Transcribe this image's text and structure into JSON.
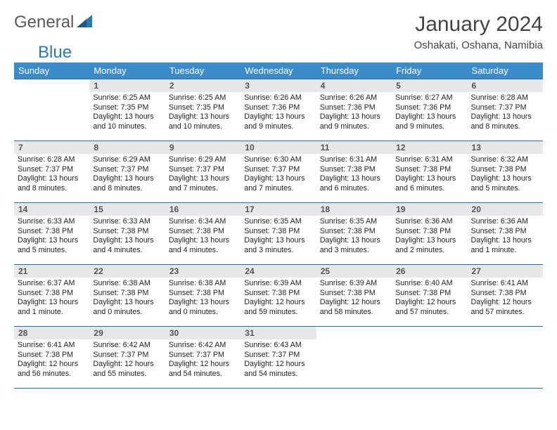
{
  "logo": {
    "general": "General",
    "blue": "Blue"
  },
  "title": "January 2024",
  "location": "Oshakati, Oshana, Namibia",
  "colors": {
    "header_bg": "#3b8bc9",
    "header_text": "#ffffff",
    "border": "#2a6a9e",
    "daynum_bg": "#e8e8e8",
    "logo_blue": "#2a7ab0",
    "logo_gray": "#5a5a5a"
  },
  "weekdays": [
    "Sunday",
    "Monday",
    "Tuesday",
    "Wednesday",
    "Thursday",
    "Friday",
    "Saturday"
  ],
  "weeks": [
    [
      {
        "n": "",
        "lines": []
      },
      {
        "n": "1",
        "lines": [
          "Sunrise: 6:25 AM",
          "Sunset: 7:35 PM",
          "Daylight: 13 hours",
          "and 10 minutes."
        ]
      },
      {
        "n": "2",
        "lines": [
          "Sunrise: 6:25 AM",
          "Sunset: 7:35 PM",
          "Daylight: 13 hours",
          "and 10 minutes."
        ]
      },
      {
        "n": "3",
        "lines": [
          "Sunrise: 6:26 AM",
          "Sunset: 7:36 PM",
          "Daylight: 13 hours",
          "and 9 minutes."
        ]
      },
      {
        "n": "4",
        "lines": [
          "Sunrise: 6:26 AM",
          "Sunset: 7:36 PM",
          "Daylight: 13 hours",
          "and 9 minutes."
        ]
      },
      {
        "n": "5",
        "lines": [
          "Sunrise: 6:27 AM",
          "Sunset: 7:36 PM",
          "Daylight: 13 hours",
          "and 9 minutes."
        ]
      },
      {
        "n": "6",
        "lines": [
          "Sunrise: 6:28 AM",
          "Sunset: 7:37 PM",
          "Daylight: 13 hours",
          "and 8 minutes."
        ]
      }
    ],
    [
      {
        "n": "7",
        "lines": [
          "Sunrise: 6:28 AM",
          "Sunset: 7:37 PM",
          "Daylight: 13 hours",
          "and 8 minutes."
        ]
      },
      {
        "n": "8",
        "lines": [
          "Sunrise: 6:29 AM",
          "Sunset: 7:37 PM",
          "Daylight: 13 hours",
          "and 8 minutes."
        ]
      },
      {
        "n": "9",
        "lines": [
          "Sunrise: 6:29 AM",
          "Sunset: 7:37 PM",
          "Daylight: 13 hours",
          "and 7 minutes."
        ]
      },
      {
        "n": "10",
        "lines": [
          "Sunrise: 6:30 AM",
          "Sunset: 7:37 PM",
          "Daylight: 13 hours",
          "and 7 minutes."
        ]
      },
      {
        "n": "11",
        "lines": [
          "Sunrise: 6:31 AM",
          "Sunset: 7:38 PM",
          "Daylight: 13 hours",
          "and 6 minutes."
        ]
      },
      {
        "n": "12",
        "lines": [
          "Sunrise: 6:31 AM",
          "Sunset: 7:38 PM",
          "Daylight: 13 hours",
          "and 6 minutes."
        ]
      },
      {
        "n": "13",
        "lines": [
          "Sunrise: 6:32 AM",
          "Sunset: 7:38 PM",
          "Daylight: 13 hours",
          "and 5 minutes."
        ]
      }
    ],
    [
      {
        "n": "14",
        "lines": [
          "Sunrise: 6:33 AM",
          "Sunset: 7:38 PM",
          "Daylight: 13 hours",
          "and 5 minutes."
        ]
      },
      {
        "n": "15",
        "lines": [
          "Sunrise: 6:33 AM",
          "Sunset: 7:38 PM",
          "Daylight: 13 hours",
          "and 4 minutes."
        ]
      },
      {
        "n": "16",
        "lines": [
          "Sunrise: 6:34 AM",
          "Sunset: 7:38 PM",
          "Daylight: 13 hours",
          "and 4 minutes."
        ]
      },
      {
        "n": "17",
        "lines": [
          "Sunrise: 6:35 AM",
          "Sunset: 7:38 PM",
          "Daylight: 13 hours",
          "and 3 minutes."
        ]
      },
      {
        "n": "18",
        "lines": [
          "Sunrise: 6:35 AM",
          "Sunset: 7:38 PM",
          "Daylight: 13 hours",
          "and 3 minutes."
        ]
      },
      {
        "n": "19",
        "lines": [
          "Sunrise: 6:36 AM",
          "Sunset: 7:38 PM",
          "Daylight: 13 hours",
          "and 2 minutes."
        ]
      },
      {
        "n": "20",
        "lines": [
          "Sunrise: 6:36 AM",
          "Sunset: 7:38 PM",
          "Daylight: 13 hours",
          "and 1 minute."
        ]
      }
    ],
    [
      {
        "n": "21",
        "lines": [
          "Sunrise: 6:37 AM",
          "Sunset: 7:38 PM",
          "Daylight: 13 hours",
          "and 1 minute."
        ]
      },
      {
        "n": "22",
        "lines": [
          "Sunrise: 6:38 AM",
          "Sunset: 7:38 PM",
          "Daylight: 13 hours",
          "and 0 minutes."
        ]
      },
      {
        "n": "23",
        "lines": [
          "Sunrise: 6:38 AM",
          "Sunset: 7:38 PM",
          "Daylight: 13 hours",
          "and 0 minutes."
        ]
      },
      {
        "n": "24",
        "lines": [
          "Sunrise: 6:39 AM",
          "Sunset: 7:38 PM",
          "Daylight: 12 hours",
          "and 59 minutes."
        ]
      },
      {
        "n": "25",
        "lines": [
          "Sunrise: 6:39 AM",
          "Sunset: 7:38 PM",
          "Daylight: 12 hours",
          "and 58 minutes."
        ]
      },
      {
        "n": "26",
        "lines": [
          "Sunrise: 6:40 AM",
          "Sunset: 7:38 PM",
          "Daylight: 12 hours",
          "and 57 minutes."
        ]
      },
      {
        "n": "27",
        "lines": [
          "Sunrise: 6:41 AM",
          "Sunset: 7:38 PM",
          "Daylight: 12 hours",
          "and 57 minutes."
        ]
      }
    ],
    [
      {
        "n": "28",
        "lines": [
          "Sunrise: 6:41 AM",
          "Sunset: 7:38 PM",
          "Daylight: 12 hours",
          "and 56 minutes."
        ]
      },
      {
        "n": "29",
        "lines": [
          "Sunrise: 6:42 AM",
          "Sunset: 7:37 PM",
          "Daylight: 12 hours",
          "and 55 minutes."
        ]
      },
      {
        "n": "30",
        "lines": [
          "Sunrise: 6:42 AM",
          "Sunset: 7:37 PM",
          "Daylight: 12 hours",
          "and 54 minutes."
        ]
      },
      {
        "n": "31",
        "lines": [
          "Sunrise: 6:43 AM",
          "Sunset: 7:37 PM",
          "Daylight: 12 hours",
          "and 54 minutes."
        ]
      },
      {
        "n": "",
        "lines": []
      },
      {
        "n": "",
        "lines": []
      },
      {
        "n": "",
        "lines": []
      }
    ]
  ]
}
